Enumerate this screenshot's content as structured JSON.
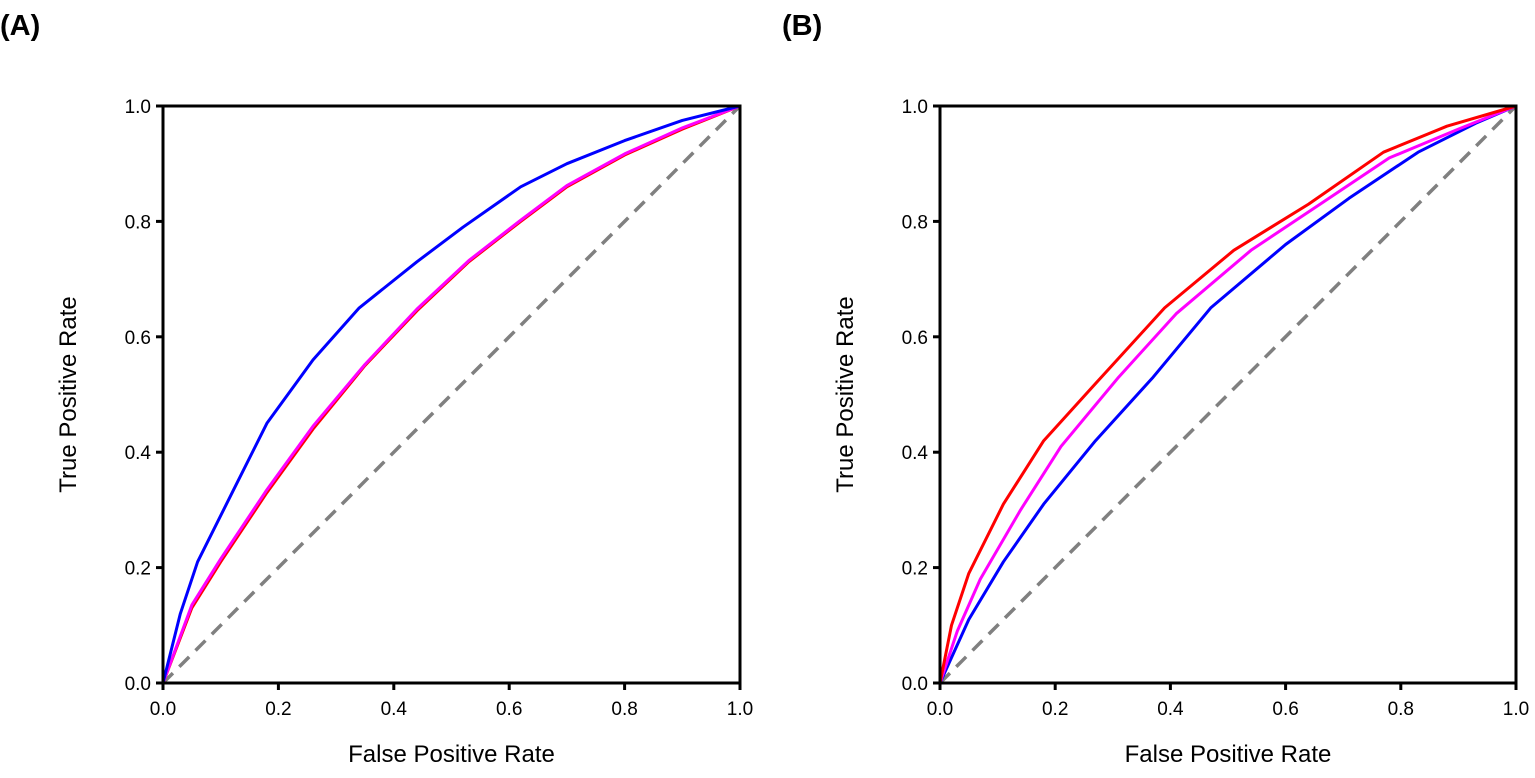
{
  "chart_data": [
    {
      "panel_label": "(A)",
      "type": "line",
      "xlabel": "False Positive Rate",
      "ylabel": "True Positive Rate",
      "xlim": [
        0,
        1
      ],
      "ylim": [
        0,
        1
      ],
      "xticks": [
        "0.0",
        "0.2",
        "0.4",
        "0.6",
        "0.8",
        "1.0"
      ],
      "yticks": [
        "0.0",
        "0.2",
        "0.4",
        "0.6",
        "0.8",
        "1.0"
      ],
      "grid": false,
      "series": [
        {
          "name": "chance",
          "color": "#808080",
          "dashed": true,
          "x": [
            0,
            1
          ],
          "y": [
            0,
            1
          ]
        },
        {
          "name": "red",
          "color": "#ff0000",
          "x": [
            0,
            0.05,
            0.1,
            0.18,
            0.26,
            0.35,
            0.44,
            0.53,
            0.62,
            0.7,
            0.8,
            0.9,
            1.0
          ],
          "y": [
            0,
            0.13,
            0.21,
            0.33,
            0.44,
            0.55,
            0.645,
            0.73,
            0.8,
            0.86,
            0.915,
            0.96,
            1.0
          ]
        },
        {
          "name": "magenta",
          "color": "#ff00ff",
          "x": [
            0,
            0.05,
            0.1,
            0.18,
            0.26,
            0.35,
            0.44,
            0.53,
            0.62,
            0.7,
            0.8,
            0.9,
            1.0
          ],
          "y": [
            0,
            0.135,
            0.215,
            0.335,
            0.445,
            0.552,
            0.648,
            0.732,
            0.802,
            0.862,
            0.917,
            0.962,
            1.0
          ]
        },
        {
          "name": "blue",
          "color": "#0000ff",
          "x": [
            0,
            0.03,
            0.06,
            0.12,
            0.18,
            0.26,
            0.34,
            0.44,
            0.52,
            0.62,
            0.7,
            0.8,
            0.9,
            1.0
          ],
          "y": [
            0,
            0.12,
            0.21,
            0.33,
            0.45,
            0.56,
            0.65,
            0.73,
            0.79,
            0.86,
            0.9,
            0.94,
            0.975,
            1.0
          ]
        }
      ]
    },
    {
      "panel_label": "(B)",
      "type": "line",
      "xlabel": "False Positive Rate",
      "ylabel": "True Positive Rate",
      "xlim": [
        0,
        1
      ],
      "ylim": [
        0,
        1
      ],
      "xticks": [
        "0.0",
        "0.2",
        "0.4",
        "0.6",
        "0.8",
        "1.0"
      ],
      "yticks": [
        "0.0",
        "0.2",
        "0.4",
        "0.6",
        "0.8",
        "1.0"
      ],
      "grid": false,
      "series": [
        {
          "name": "chance",
          "color": "#808080",
          "dashed": true,
          "x": [
            0,
            1
          ],
          "y": [
            0,
            1
          ]
        },
        {
          "name": "blue",
          "color": "#0000ff",
          "x": [
            0,
            0.05,
            0.11,
            0.18,
            0.27,
            0.37,
            0.47,
            0.6,
            0.71,
            0.83,
            0.93,
            1.0
          ],
          "y": [
            0,
            0.11,
            0.21,
            0.31,
            0.42,
            0.53,
            0.65,
            0.76,
            0.84,
            0.92,
            0.97,
            1.0
          ]
        },
        {
          "name": "magenta",
          "color": "#ff00ff",
          "x": [
            0,
            0.03,
            0.07,
            0.14,
            0.21,
            0.31,
            0.41,
            0.54,
            0.66,
            0.78,
            0.9,
            1.0
          ],
          "y": [
            0,
            0.09,
            0.18,
            0.3,
            0.41,
            0.53,
            0.64,
            0.75,
            0.83,
            0.91,
            0.96,
            1.0
          ]
        },
        {
          "name": "red",
          "color": "#ff0000",
          "x": [
            0,
            0.02,
            0.05,
            0.11,
            0.18,
            0.28,
            0.39,
            0.51,
            0.64,
            0.77,
            0.88,
            1.0
          ],
          "y": [
            0,
            0.1,
            0.19,
            0.31,
            0.42,
            0.53,
            0.65,
            0.75,
            0.83,
            0.92,
            0.965,
            1.0
          ]
        }
      ]
    }
  ]
}
